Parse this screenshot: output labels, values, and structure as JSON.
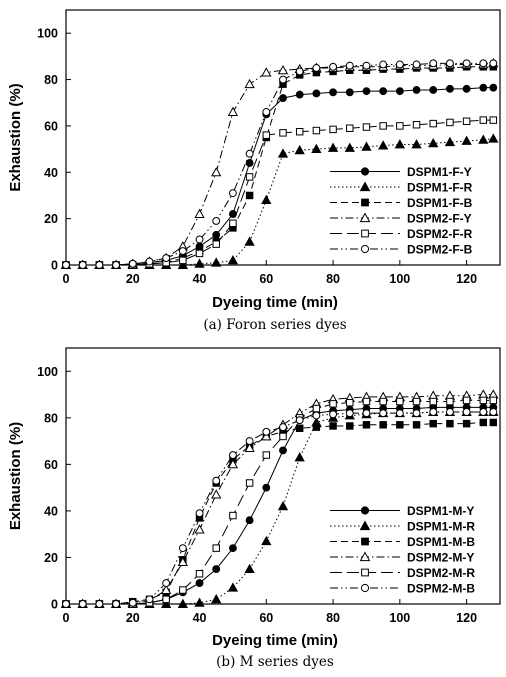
{
  "chart_data": [
    {
      "type": "line",
      "caption": "(a) Foron series dyes",
      "xlabel": "Dyeing time (min)",
      "ylabel": "Exhaustion (%)",
      "xlim": [
        0,
        130
      ],
      "ylim": [
        0,
        110
      ],
      "xticks": [
        0,
        20,
        40,
        60,
        80,
        100,
        120
      ],
      "yticks": [
        0,
        20,
        40,
        60,
        80,
        100
      ],
      "legend_position": "lower-right",
      "x": [
        0,
        5,
        10,
        15,
        20,
        25,
        30,
        35,
        40,
        45,
        50,
        55,
        60,
        65,
        70,
        75,
        80,
        85,
        90,
        95,
        100,
        105,
        110,
        115,
        120,
        125,
        128
      ],
      "series": [
        {
          "name": "DSPM1-F-Y",
          "marker": "filled-circle",
          "dash": "solid",
          "values": [
            0,
            0,
            0,
            0,
            0.5,
            1,
            2,
            4,
            8,
            13,
            22,
            44,
            65,
            72,
            73.5,
            74,
            74.5,
            74.5,
            75,
            75,
            75,
            75.5,
            75.5,
            76,
            76,
            76.5,
            76.5
          ]
        },
        {
          "name": "DSPM1-F-R",
          "marker": "filled-triangle",
          "dash": "dotted",
          "values": [
            0,
            0,
            0,
            0,
            0,
            0,
            0,
            0,
            0.5,
            1,
            2,
            10,
            28,
            48,
            49.5,
            50,
            50.5,
            50.5,
            51,
            51.5,
            52,
            52,
            52.5,
            53,
            53.5,
            54,
            54.5
          ]
        },
        {
          "name": "DSPM1-F-B",
          "marker": "filled-square",
          "dash": "dashed",
          "values": [
            0,
            0,
            0,
            0,
            0,
            0.5,
            1,
            3,
            6,
            10,
            16,
            30,
            55,
            78,
            82,
            83,
            83.5,
            84,
            84,
            84.5,
            84.5,
            85,
            85,
            85,
            85.5,
            85.5,
            85.5
          ]
        },
        {
          "name": "DSPM2-F-Y",
          "marker": "open-triangle",
          "dash": "dash-dot",
          "values": [
            0,
            0,
            0,
            0,
            0.5,
            1.5,
            3,
            8,
            22,
            40,
            66,
            78,
            83,
            84,
            84.5,
            85,
            85,
            85.5,
            85.5,
            85.5,
            86,
            86,
            86,
            86.5,
            86.5,
            86.5,
            87
          ]
        },
        {
          "name": "DSPM2-F-R",
          "marker": "open-square",
          "dash": "long-dash",
          "values": [
            0,
            0,
            0,
            0,
            0,
            0.5,
            1,
            2,
            5,
            9,
            18,
            38,
            56,
            57,
            57.5,
            58,
            58.5,
            59,
            59.5,
            60,
            60,
            60.5,
            61,
            61.5,
            62,
            62.5,
            62.5
          ]
        },
        {
          "name": "DSPM2-F-B",
          "marker": "open-circle",
          "dash": "dash-dot-dot",
          "values": [
            0,
            0,
            0,
            0,
            0.5,
            1.5,
            3,
            6,
            11,
            19,
            31,
            48,
            66,
            80,
            83.5,
            85,
            85.5,
            86,
            86,
            86.5,
            86.5,
            86.5,
            87,
            87,
            87,
            87,
            87
          ]
        }
      ]
    },
    {
      "type": "line",
      "caption": "(b) M series dyes",
      "xlabel": "Dyeing time (min)",
      "ylabel": "Exhaustion (%)",
      "xlim": [
        0,
        130
      ],
      "ylim": [
        0,
        110
      ],
      "xticks": [
        0,
        20,
        40,
        60,
        80,
        100,
        120
      ],
      "yticks": [
        0,
        20,
        40,
        60,
        80,
        100
      ],
      "legend_position": "lower-right",
      "x": [
        0,
        5,
        10,
        15,
        20,
        25,
        30,
        35,
        40,
        45,
        50,
        55,
        60,
        65,
        70,
        75,
        80,
        85,
        90,
        95,
        100,
        105,
        110,
        115,
        120,
        125,
        128
      ],
      "series": [
        {
          "name": "DSPM1-M-Y",
          "marker": "filled-circle",
          "dash": "solid",
          "values": [
            0,
            0,
            0,
            0,
            0,
            0.5,
            2,
            5,
            9,
            15,
            24,
            36,
            50,
            66,
            79,
            82,
            83,
            83.5,
            84,
            84,
            84,
            84,
            84.5,
            84.5,
            84.5,
            84.5,
            84.5
          ]
        },
        {
          "name": "DSPM1-M-R",
          "marker": "filled-triangle",
          "dash": "dotted",
          "values": [
            0,
            0,
            0,
            0,
            0,
            0,
            0,
            0,
            0.5,
            2,
            7,
            15,
            27,
            42,
            63,
            78,
            80,
            81,
            81.5,
            82,
            82,
            82,
            82.5,
            82.5,
            82.5,
            82.5,
            82.5
          ]
        },
        {
          "name": "DSPM1-M-B",
          "marker": "filled-square",
          "dash": "dashed",
          "values": [
            0,
            0,
            0,
            0,
            1,
            2,
            5,
            19,
            37,
            52,
            62,
            68,
            72,
            74,
            75.5,
            76,
            76.5,
            76.5,
            77,
            77,
            77,
            77,
            77.5,
            77.5,
            77.5,
            78,
            78
          ]
        },
        {
          "name": "DSPM2-M-Y",
          "marker": "open-triangle",
          "dash": "dash-dot",
          "values": [
            0,
            0,
            0,
            0,
            0.5,
            1.5,
            6,
            18,
            32,
            47,
            60,
            67,
            72,
            77,
            82,
            86,
            88,
            88.5,
            89,
            89,
            89,
            89,
            89.5,
            89.5,
            89.5,
            90,
            90
          ]
        },
        {
          "name": "DSPM2-M-R",
          "marker": "open-square",
          "dash": "long-dash",
          "values": [
            0,
            0,
            0,
            0,
            0,
            0.5,
            2,
            6,
            13,
            24,
            38,
            52,
            64,
            72,
            80,
            84,
            86,
            86.5,
            87,
            87,
            87,
            87,
            87,
            87,
            87.5,
            87.5,
            87.5
          ]
        },
        {
          "name": "DSPM2-M-B",
          "marker": "open-circle",
          "dash": "dash-dot-dot",
          "values": [
            0,
            0,
            0,
            0,
            0.5,
            2,
            9,
            24,
            39,
            53,
            64,
            70,
            74,
            76,
            79,
            81,
            81.5,
            82,
            82,
            82,
            82,
            82,
            82.5,
            82.5,
            82.5,
            82.5,
            82.5
          ]
        }
      ]
    }
  ]
}
